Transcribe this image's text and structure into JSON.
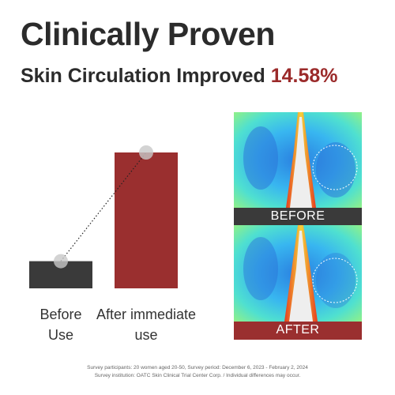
{
  "chart_data": {
    "type": "bar",
    "title": "Clinically Proven",
    "subtitle": "Skin Circulation Improved",
    "highlight": "14.58%",
    "categories": [
      "Before Use",
      "After immediate use"
    ],
    "values": [
      20,
      100
    ],
    "colors": [
      "#3a3a3a",
      "#9a2f2f"
    ],
    "ylim": [
      0,
      100
    ]
  },
  "images": {
    "before_label": "BEFORE",
    "after_label": "AFTER"
  },
  "footnote": [
    "Survey participants: 20 women aged 20-50, Survey period: December 6, 2023 - February 2, 2024",
    "Survey institution: OATC Skin Clinical Trial Center Corp. / Individual differences may occur."
  ]
}
